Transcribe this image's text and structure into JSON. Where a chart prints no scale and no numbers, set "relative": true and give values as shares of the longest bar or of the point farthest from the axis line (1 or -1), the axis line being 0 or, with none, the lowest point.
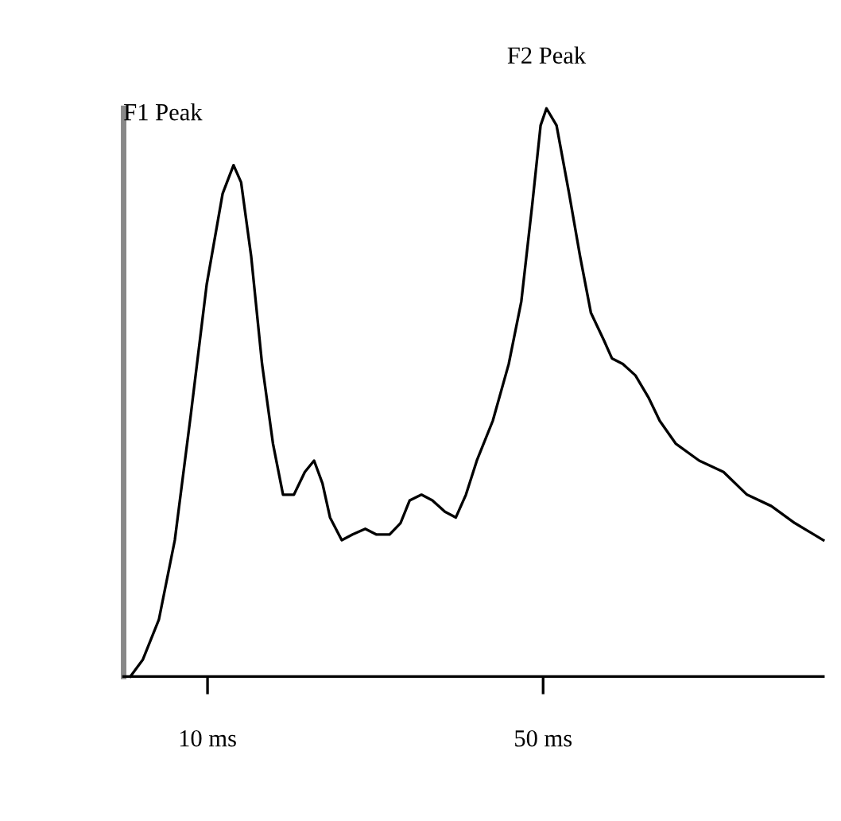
{
  "chart_data": {
    "type": "line",
    "relative": true,
    "color": "#000000",
    "xlim": [
      0,
      83.4
    ],
    "xticks": [
      {
        "value": 10,
        "label": "10 ms"
      },
      {
        "value": 50,
        "label": "50 ms"
      }
    ],
    "tick_labels": "x",
    "grid": false,
    "legend": false,
    "marker": "none",
    "line_style": "solid",
    "annotations": [
      {
        "text": "F1 Peak",
        "x": 13.1,
        "y": 0.9
      },
      {
        "text": "F2 Peak",
        "x": 50.4,
        "y": 1
      }
    ],
    "x": [
      0.8,
      2.3,
      4.2,
      6.1,
      8.0,
      9.9,
      11.8,
      13.1,
      14.0,
      15.2,
      16.5,
      17.8,
      19.0,
      20.3,
      21.6,
      22.7,
      23.7,
      24.6,
      26.0,
      27.3,
      28.8,
      30.1,
      31.7,
      33.0,
      34.1,
      35.5,
      36.8,
      38.3,
      39.6,
      40.8,
      42.1,
      44.0,
      45.9,
      47.4,
      48.7,
      49.7,
      50.4,
      51.6,
      53.1,
      54.4,
      55.7,
      57.3,
      58.2,
      59.5,
      61.0,
      62.6,
      63.9,
      65.8,
      68.6,
      71.5,
      74.3,
      77.2,
      80.0,
      83.4
    ],
    "values": [
      0,
      0.03,
      0.1,
      0.24,
      0.46,
      0.69,
      0.85,
      0.9,
      0.87,
      0.74,
      0.55,
      0.41,
      0.32,
      0.32,
      0.36,
      0.38,
      0.34,
      0.28,
      0.24,
      0.25,
      0.26,
      0.25,
      0.25,
      0.27,
      0.31,
      0.32,
      0.31,
      0.29,
      0.28,
      0.32,
      0.38,
      0.45,
      0.55,
      0.66,
      0.83,
      0.97,
      1,
      0.97,
      0.85,
      0.74,
      0.64,
      0.59,
      0.56,
      0.55,
      0.53,
      0.49,
      0.45,
      0.41,
      0.38,
      0.36,
      0.32,
      0.3,
      0.27,
      0.24
    ]
  }
}
